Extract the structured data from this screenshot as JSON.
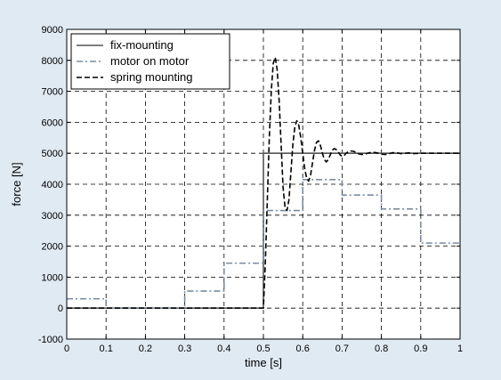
{
  "chart_data": {
    "type": "line",
    "title": "",
    "xlabel": "time [s]",
    "ylabel": "force [N]",
    "xlim": [
      0,
      1
    ],
    "ylim": [
      -1000,
      9000
    ],
    "xticks": [
      0,
      0.1,
      0.2,
      0.3,
      0.4,
      0.5,
      0.6,
      0.7,
      0.8,
      0.9,
      1
    ],
    "xtick_labels": [
      "0",
      "0.1",
      "0.2",
      "0.3",
      "0.4",
      "0.5",
      "0.6",
      "0.7",
      "0.8",
      "0.9",
      "1"
    ],
    "yticks": [
      -1000,
      0,
      1000,
      2000,
      3000,
      4000,
      5000,
      6000,
      7000,
      8000,
      9000
    ],
    "ytick_labels": [
      "-1000",
      "0",
      "1000",
      "2000",
      "3000",
      "4000",
      "5000",
      "6000",
      "7000",
      "8000",
      "9000"
    ],
    "grid": true,
    "legend_position": "top-left",
    "series": [
      {
        "name": "fix-mounting",
        "color": "#555555",
        "dash": "solid",
        "x": [
          0,
          0.5,
          0.5,
          1
        ],
        "y": [
          0,
          0,
          5000,
          5000
        ]
      },
      {
        "name": "motor on motor",
        "color": "#7a8ca0",
        "dash": "dashdot",
        "x": [
          0,
          0.1,
          0.1,
          0.3,
          0.3,
          0.4,
          0.4,
          0.5,
          0.5,
          0.6,
          0.6,
          0.7,
          0.7,
          0.8,
          0.8,
          0.9,
          0.9,
          1
        ],
        "y": [
          300,
          300,
          0,
          0,
          550,
          550,
          1450,
          1450,
          3150,
          3150,
          4150,
          4150,
          3650,
          3650,
          3200,
          3200,
          2100,
          2100
        ]
      },
      {
        "name": "spring mounting",
        "color": "#000000",
        "dash": "dashed",
        "x": [
          0,
          0.5,
          0.505,
          0.51,
          0.515,
          0.52,
          0.525,
          0.53,
          0.535,
          0.54,
          0.545,
          0.55,
          0.555,
          0.56,
          0.565,
          0.57,
          0.575,
          0.58,
          0.585,
          0.59,
          0.595,
          0.6,
          0.605,
          0.61,
          0.615,
          0.62,
          0.625,
          0.63,
          0.635,
          0.64,
          0.645,
          0.65,
          0.655,
          0.66,
          0.665,
          0.67,
          0.675,
          0.68,
          0.685,
          0.69,
          0.695,
          0.7,
          0.705,
          0.71,
          0.72,
          0.73,
          0.74,
          0.75,
          0.76,
          0.77,
          0.78,
          0.79,
          0.8,
          0.81,
          0.82,
          0.83,
          0.84,
          0.85,
          0.86,
          0.87,
          0.88,
          0.9,
          0.92,
          0.94,
          0.96,
          1
        ],
        "y": [
          0,
          0,
          1500,
          3500,
          5500,
          7000,
          7900,
          8100,
          7700,
          6700,
          5300,
          3900,
          3250,
          3150,
          3500,
          4400,
          5300,
          5850,
          6050,
          5900,
          5500,
          5000,
          4500,
          4200,
          4100,
          4300,
          4700,
          5100,
          5350,
          5400,
          5250,
          5000,
          4800,
          4720,
          4800,
          4950,
          5100,
          5150,
          5120,
          5050,
          4950,
          4900,
          4920,
          5000,
          5080,
          5060,
          4990,
          4960,
          4980,
          5020,
          5030,
          5010,
          4970,
          4960,
          4990,
          5020,
          5010,
          4990,
          5000,
          5010,
          4990,
          5000,
          5000,
          5000,
          5000,
          5000
        ]
      }
    ]
  }
}
